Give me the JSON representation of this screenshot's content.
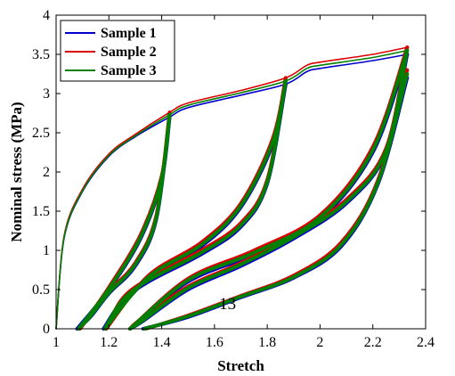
{
  "chart_data": {
    "type": "line",
    "title": "",
    "xlabel": "Stretch",
    "ylabel": "Nominal stress (MPa)",
    "xlim": [
      1,
      2.4
    ],
    "ylim": [
      0,
      4
    ],
    "x_ticks": [
      "1",
      "1.2",
      "1.4",
      "1.6",
      "1.8",
      "2",
      "2.2",
      "2.4"
    ],
    "y_ticks": [
      "0",
      "0.5",
      "1",
      "1.5",
      "2",
      "2.5",
      "3",
      "3.5",
      "4"
    ],
    "x_tick_values": [
      1,
      1.2,
      1.4,
      1.6,
      1.8,
      2,
      2.2,
      2.4
    ],
    "y_tick_values": [
      0,
      0.5,
      1,
      1.5,
      2,
      2.5,
      3,
      3.5,
      4
    ],
    "grid": false,
    "legend_position": "top-left",
    "annotation": "13",
    "annotation_at": [
      1.65,
      0.25
    ],
    "series": [
      {
        "name": "Sample 1",
        "color": "#0000cc",
        "loading": [
          [
            1,
            0
          ],
          [
            1.03,
            1.15
          ],
          [
            1.1,
            1.75
          ],
          [
            1.2,
            2.2
          ],
          [
            1.3,
            2.45
          ],
          [
            1.43,
            2.7
          ],
          [
            1.5,
            2.82
          ],
          [
            1.7,
            2.98
          ],
          [
            1.87,
            3.12
          ],
          [
            1.95,
            3.28
          ],
          [
            2.0,
            3.32
          ],
          [
            2.2,
            3.42
          ],
          [
            2.33,
            3.5
          ]
        ],
        "unloading": [
          [
            [
              1.43,
              2.7
            ],
            [
              1.38,
              1.4
            ],
            [
              1.3,
              0.8
            ],
            [
              1.2,
              0.45
            ],
            [
              1.13,
              0.15
            ],
            [
              1.08,
              0
            ]
          ],
          [
            [
              1.87,
              3.12
            ],
            [
              1.8,
              1.85
            ],
            [
              1.7,
              1.3
            ],
            [
              1.55,
              0.95
            ],
            [
              1.35,
              0.6
            ],
            [
              1.25,
              0.35
            ],
            [
              1.18,
              0
            ]
          ],
          [
            [
              2.33,
              3.5
            ],
            [
              2.25,
              2.25
            ],
            [
              2.1,
              1.6
            ],
            [
              1.9,
              1.15
            ],
            [
              1.7,
              0.8
            ],
            [
              1.5,
              0.5
            ],
            [
              1.33,
              0.1
            ],
            [
              1.28,
              0
            ]
          ],
          [
            [
              2.33,
              3.2
            ],
            [
              2.22,
              1.85
            ],
            [
              2.08,
              1.05
            ],
            [
              1.9,
              0.65
            ],
            [
              1.7,
              0.4
            ],
            [
              1.5,
              0.15
            ],
            [
              1.33,
              0
            ]
          ]
        ],
        "reloading": [
          [
            [
              1.08,
              0
            ],
            [
              1.2,
              0.5
            ],
            [
              1.32,
              1.15
            ],
            [
              1.4,
              1.9
            ],
            [
              1.43,
              2.7
            ]
          ],
          [
            [
              1.18,
              0
            ],
            [
              1.35,
              0.65
            ],
            [
              1.55,
              1.05
            ],
            [
              1.7,
              1.55
            ],
            [
              1.82,
              2.35
            ],
            [
              1.87,
              3.12
            ]
          ],
          [
            [
              1.28,
              0
            ],
            [
              1.5,
              0.6
            ],
            [
              1.75,
              0.95
            ],
            [
              2.0,
              1.4
            ],
            [
              2.2,
              2.25
            ],
            [
              2.33,
              3.5
            ]
          ]
        ]
      },
      {
        "name": "Sample 2",
        "color": "#dd0000",
        "loading": [
          [
            1,
            0
          ],
          [
            1.03,
            1.18
          ],
          [
            1.1,
            1.78
          ],
          [
            1.2,
            2.23
          ],
          [
            1.3,
            2.48
          ],
          [
            1.43,
            2.76
          ],
          [
            1.5,
            2.88
          ],
          [
            1.7,
            3.04
          ],
          [
            1.87,
            3.2
          ],
          [
            1.95,
            3.36
          ],
          [
            2.0,
            3.4
          ],
          [
            2.2,
            3.5
          ],
          [
            2.33,
            3.59
          ]
        ],
        "unloading": [
          [
            [
              1.43,
              2.76
            ],
            [
              1.38,
              1.45
            ],
            [
              1.3,
              0.84
            ],
            [
              1.2,
              0.48
            ],
            [
              1.13,
              0.17
            ],
            [
              1.09,
              0
            ]
          ],
          [
            [
              1.87,
              3.2
            ],
            [
              1.8,
              1.9
            ],
            [
              1.7,
              1.35
            ],
            [
              1.55,
              1.0
            ],
            [
              1.35,
              0.64
            ],
            [
              1.25,
              0.38
            ],
            [
              1.19,
              0
            ]
          ],
          [
            [
              2.33,
              3.59
            ],
            [
              2.25,
              2.3
            ],
            [
              2.1,
              1.65
            ],
            [
              1.9,
              1.2
            ],
            [
              1.7,
              0.84
            ],
            [
              1.5,
              0.54
            ],
            [
              1.32,
              0.12
            ],
            [
              1.28,
              0
            ]
          ],
          [
            [
              2.33,
              3.3
            ],
            [
              2.22,
              1.9
            ],
            [
              2.08,
              1.1
            ],
            [
              1.9,
              0.68
            ],
            [
              1.7,
              0.42
            ],
            [
              1.5,
              0.17
            ],
            [
              1.34,
              0
            ]
          ]
        ],
        "reloading": [
          [
            [
              1.09,
              0
            ],
            [
              1.2,
              0.53
            ],
            [
              1.32,
              1.2
            ],
            [
              1.4,
              1.95
            ],
            [
              1.43,
              2.76
            ]
          ],
          [
            [
              1.19,
              0
            ],
            [
              1.35,
              0.68
            ],
            [
              1.55,
              1.1
            ],
            [
              1.7,
              1.6
            ],
            [
              1.82,
              2.42
            ],
            [
              1.87,
              3.2
            ]
          ],
          [
            [
              1.28,
              0
            ],
            [
              1.5,
              0.64
            ],
            [
              1.75,
              1.0
            ],
            [
              2.0,
              1.45
            ],
            [
              2.2,
              2.32
            ],
            [
              2.33,
              3.59
            ]
          ]
        ]
      },
      {
        "name": "Sample 3",
        "color": "#008000",
        "loading": [
          [
            1,
            0
          ],
          [
            1.03,
            1.16
          ],
          [
            1.1,
            1.76
          ],
          [
            1.2,
            2.21
          ],
          [
            1.3,
            2.46
          ],
          [
            1.43,
            2.73
          ],
          [
            1.5,
            2.85
          ],
          [
            1.7,
            3.01
          ],
          [
            1.87,
            3.16
          ],
          [
            1.95,
            3.32
          ],
          [
            2.0,
            3.36
          ],
          [
            2.2,
            3.46
          ],
          [
            2.33,
            3.55
          ]
        ],
        "unloading": [
          [
            [
              1.43,
              2.73
            ],
            [
              1.38,
              1.42
            ],
            [
              1.3,
              0.82
            ],
            [
              1.2,
              0.46
            ],
            [
              1.13,
              0.16
            ],
            [
              1.085,
              0
            ]
          ],
          [
            [
              1.87,
              3.16
            ],
            [
              1.8,
              1.87
            ],
            [
              1.7,
              1.32
            ],
            [
              1.55,
              0.97
            ],
            [
              1.35,
              0.62
            ],
            [
              1.25,
              0.36
            ],
            [
              1.185,
              0
            ]
          ],
          [
            [
              2.33,
              3.55
            ],
            [
              2.25,
              2.27
            ],
            [
              2.1,
              1.62
            ],
            [
              1.9,
              1.17
            ],
            [
              1.7,
              0.82
            ],
            [
              1.5,
              0.52
            ],
            [
              1.33,
              0.11
            ],
            [
              1.28,
              0
            ]
          ],
          [
            [
              2.33,
              3.25
            ],
            [
              2.22,
              1.87
            ],
            [
              2.08,
              1.07
            ],
            [
              1.9,
              0.66
            ],
            [
              1.7,
              0.41
            ],
            [
              1.5,
              0.16
            ],
            [
              1.335,
              0
            ]
          ]
        ],
        "reloading": [
          [
            [
              1.085,
              0
            ],
            [
              1.2,
              0.51
            ],
            [
              1.32,
              1.17
            ],
            [
              1.4,
              1.92
            ],
            [
              1.43,
              2.73
            ]
          ],
          [
            [
              1.185,
              0
            ],
            [
              1.35,
              0.66
            ],
            [
              1.55,
              1.07
            ],
            [
              1.7,
              1.57
            ],
            [
              1.82,
              2.38
            ],
            [
              1.87,
              3.16
            ]
          ],
          [
            [
              1.28,
              0
            ],
            [
              1.5,
              0.62
            ],
            [
              1.75,
              0.97
            ],
            [
              2.0,
              1.42
            ],
            [
              2.2,
              2.28
            ],
            [
              2.33,
              3.55
            ]
          ]
        ]
      }
    ]
  }
}
